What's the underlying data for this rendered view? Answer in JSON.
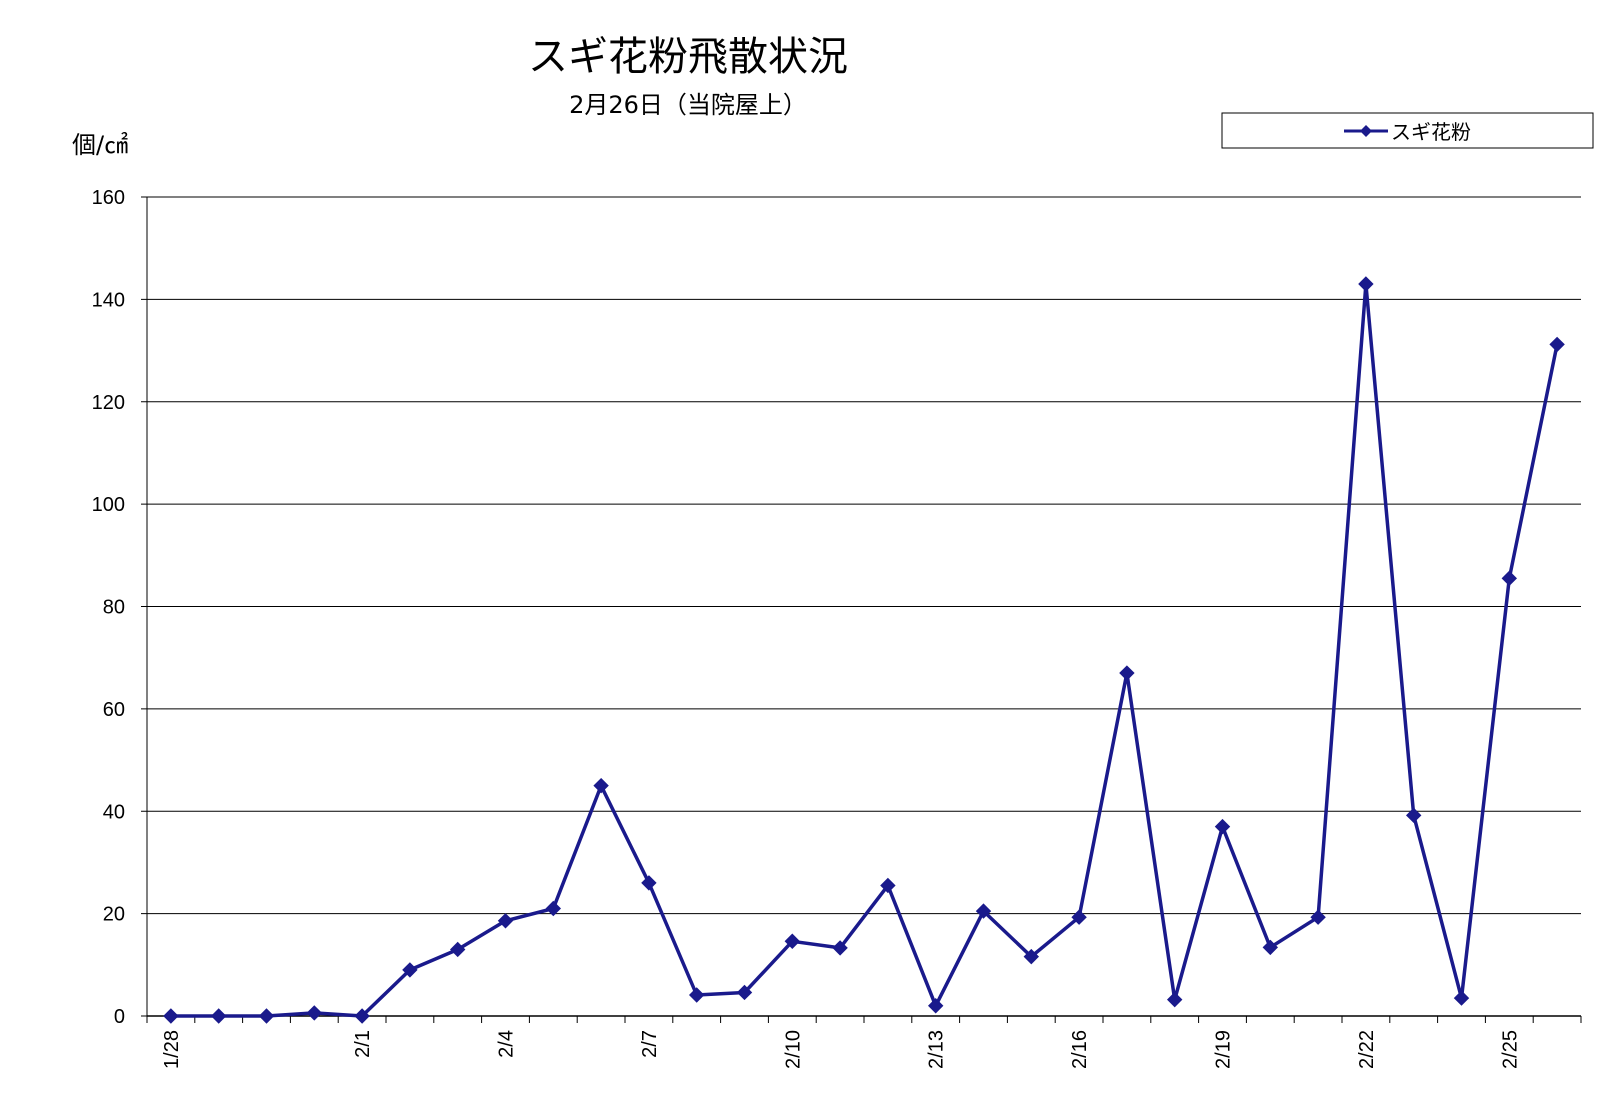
{
  "chart_data": {
    "type": "line",
    "title": "スギ花粉飛散状況",
    "subtitle": "2月26日（当院屋上）",
    "ylabel": "個/㎠",
    "ylim": [
      0,
      160
    ],
    "yticks": [
      0,
      20,
      40,
      60,
      80,
      100,
      120,
      140,
      160
    ],
    "grid": true,
    "legend_position": "top-right",
    "categories": [
      "1/28",
      "1/29",
      "1/30",
      "1/31",
      "2/1",
      "2/2",
      "2/3",
      "2/4",
      "2/5",
      "2/6",
      "2/7",
      "2/8",
      "2/9",
      "2/10",
      "2/11",
      "2/12",
      "2/13",
      "2/14",
      "2/15",
      "2/16",
      "2/17",
      "2/18",
      "2/19",
      "2/20",
      "2/21",
      "2/22",
      "2/23",
      "2/24",
      "2/25",
      "2/26"
    ],
    "xtick_labels": [
      "1/28",
      "",
      "",
      "",
      "2/1",
      "",
      "",
      "2/4",
      "",
      "",
      "2/7",
      "",
      "",
      "2/10",
      "",
      "",
      "2/13",
      "",
      "",
      "2/16",
      "",
      "",
      "2/19",
      "",
      "",
      "2/22",
      "",
      "",
      "2/25",
      ""
    ],
    "series": [
      {
        "name": "スギ花粉",
        "color": "#1a1a8c",
        "marker": "diamond",
        "values": [
          0,
          0,
          0,
          0.6,
          0,
          9,
          13,
          18.6,
          21,
          45,
          26,
          4.1,
          4.6,
          14.6,
          13.3,
          25.5,
          2,
          20.5,
          11.6,
          19.3,
          67,
          3.2,
          37,
          13.4,
          19.3,
          143,
          39.2,
          3.5,
          85.5,
          131.2
        ]
      }
    ]
  }
}
